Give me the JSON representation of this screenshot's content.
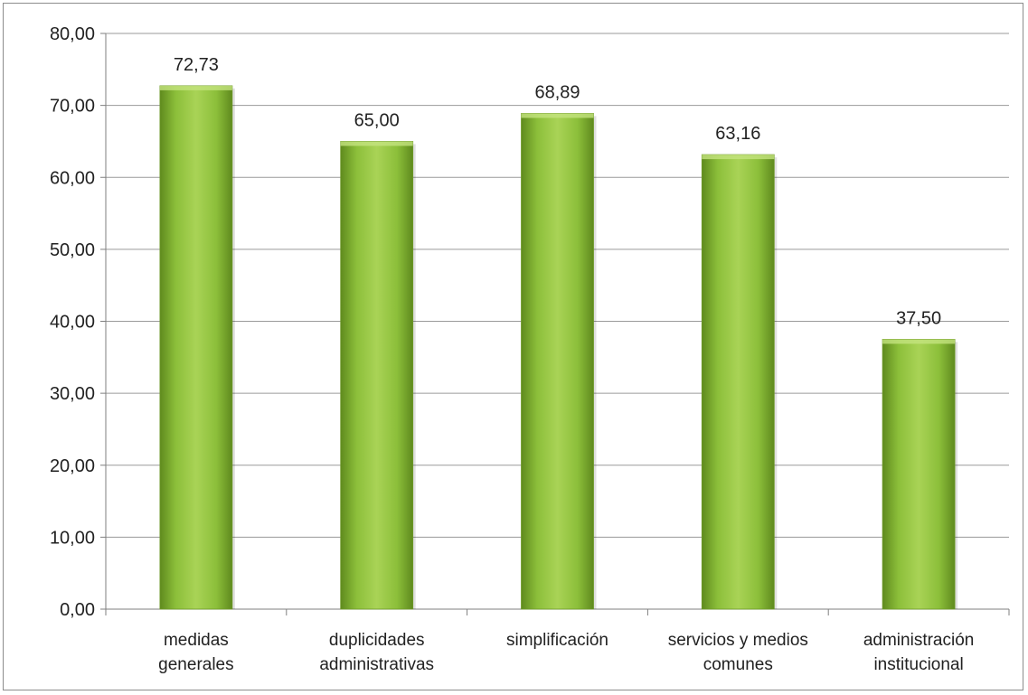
{
  "chart_data": {
    "type": "bar",
    "categories": [
      [
        "medidas",
        "generales"
      ],
      [
        "duplicidades",
        "administrativas"
      ],
      [
        "simplificación"
      ],
      [
        "servicios y medios",
        "comunes"
      ],
      [
        "administración",
        "institucional"
      ]
    ],
    "values": [
      72.73,
      65.0,
      68.89,
      63.16,
      37.5
    ],
    "data_labels": [
      "72,73",
      "65,00",
      "68,89",
      "63,16",
      "37,50"
    ],
    "ylim": [
      0,
      80
    ],
    "yticks": [
      0,
      10,
      20,
      30,
      40,
      50,
      60,
      70,
      80
    ],
    "ytick_labels": [
      "0,00",
      "10,00",
      "20,00",
      "30,00",
      "40,00",
      "50,00",
      "60,00",
      "70,00",
      "80,00"
    ],
    "title": "",
    "xlabel": "",
    "ylabel": "",
    "grid": true,
    "legend": "none",
    "colors": {
      "bar_light": "#a9d356",
      "bar_mid": "#8cbf3a",
      "bar_dark": "#5f8a1e",
      "grid": "#9a9a9a",
      "axis": "#7f7f7f"
    }
  }
}
